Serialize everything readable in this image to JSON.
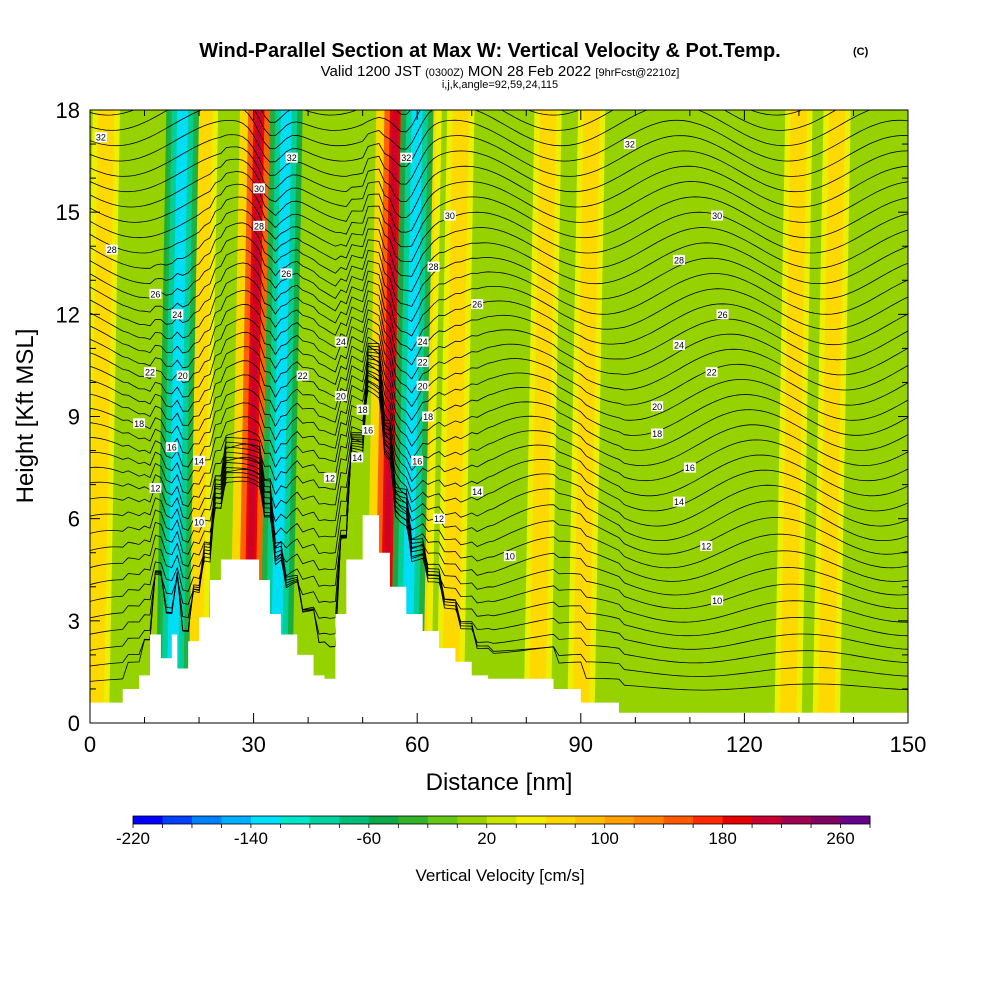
{
  "header": {
    "title": "Wind-Parallel Section at Max W: Vertical Velocity & Pot.Temp.",
    "copyright": "(C)",
    "valid_prefix": "Valid 1200 JST",
    "valid_zulu": "(0300Z)",
    "valid_date": "MON 28 Feb 2022",
    "forecast": "[9hrFcst@2210z]",
    "indices": "i,j,k,angle=92,59,24,115"
  },
  "chart_data": {
    "type": "heatmap",
    "xlabel": "Distance [nm]",
    "ylabel": "Height [Kft MSL]",
    "xlim": [
      0,
      150
    ],
    "ylim": [
      0,
      18
    ],
    "x_ticks": [
      "0",
      "30",
      "60",
      "90",
      "120",
      "150"
    ],
    "y_ticks": [
      "0",
      "3",
      "6",
      "9",
      "12",
      "15",
      "18"
    ],
    "colorbar": {
      "label": "Vertical Velocity [cm/s]",
      "min": -220,
      "max": 280,
      "step": 20,
      "tick_labels": [
        "-220",
        "-140",
        "-60",
        "20",
        "100",
        "180",
        "260"
      ],
      "colors": [
        "#0000ff",
        "#0040ff",
        "#0080ff",
        "#00b0ff",
        "#00e0ff",
        "#00e6c8",
        "#00d2a0",
        "#00be78",
        "#0aaa46",
        "#32b428",
        "#64c814",
        "#96d200",
        "#c8e600",
        "#f0f000",
        "#ffd700",
        "#ffbe00",
        "#ffa000",
        "#ff8200",
        "#ff5a00",
        "#ff2800",
        "#e60000",
        "#c80032",
        "#a00050",
        "#820064",
        "#64008c"
      ]
    },
    "updraft_bands_nm": [
      3,
      17,
      21,
      31,
      56,
      62,
      68,
      84,
      92,
      130,
      137
    ],
    "downdraft_bands_nm": [
      15,
      34,
      58
    ],
    "terrain": [
      {
        "x": 0,
        "h": 0.6
      },
      {
        "x": 3,
        "h": 0.6
      },
      {
        "x": 6,
        "h": 1.0
      },
      {
        "x": 9,
        "h": 1.4
      },
      {
        "x": 11,
        "h": 2.6
      },
      {
        "x": 13,
        "h": 1.9
      },
      {
        "x": 15,
        "h": 2.6
      },
      {
        "x": 16,
        "h": 1.6
      },
      {
        "x": 18,
        "h": 2.4
      },
      {
        "x": 20,
        "h": 3.1
      },
      {
        "x": 22,
        "h": 4.2
      },
      {
        "x": 24,
        "h": 4.8
      },
      {
        "x": 28,
        "h": 4.8
      },
      {
        "x": 31,
        "h": 4.2
      },
      {
        "x": 33,
        "h": 3.2
      },
      {
        "x": 35,
        "h": 2.6
      },
      {
        "x": 38,
        "h": 2.0
      },
      {
        "x": 41,
        "h": 1.4
      },
      {
        "x": 43,
        "h": 1.3
      },
      {
        "x": 45,
        "h": 3.2
      },
      {
        "x": 47,
        "h": 4.8
      },
      {
        "x": 50,
        "h": 6.1
      },
      {
        "x": 53,
        "h": 5.0
      },
      {
        "x": 55,
        "h": 4.0
      },
      {
        "x": 58,
        "h": 3.2
      },
      {
        "x": 61,
        "h": 2.7
      },
      {
        "x": 64,
        "h": 2.2
      },
      {
        "x": 67,
        "h": 1.8
      },
      {
        "x": 70,
        "h": 1.4
      },
      {
        "x": 73,
        "h": 1.3
      },
      {
        "x": 79,
        "h": 1.3
      },
      {
        "x": 82,
        "h": 1.3
      },
      {
        "x": 85,
        "h": 1.0
      },
      {
        "x": 90,
        "h": 0.6
      },
      {
        "x": 95,
        "h": 0.6
      },
      {
        "x": 97,
        "h": 0.3
      },
      {
        "x": 150,
        "h": 0.3
      }
    ],
    "isentrope_labels": [
      {
        "text": "32",
        "x": 2,
        "y": 17.2
      },
      {
        "text": "32",
        "x": 37,
        "y": 16.6
      },
      {
        "text": "32",
        "x": 58,
        "y": 16.6
      },
      {
        "text": "32",
        "x": 99,
        "y": 17.0
      },
      {
        "text": "30",
        "x": 31,
        "y": 15.7
      },
      {
        "text": "30",
        "x": 66,
        "y": 14.9
      },
      {
        "text": "30",
        "x": 115,
        "y": 14.9
      },
      {
        "text": "28",
        "x": 4,
        "y": 13.9
      },
      {
        "text": "28",
        "x": 31,
        "y": 14.6
      },
      {
        "text": "28",
        "x": 63,
        "y": 13.4
      },
      {
        "text": "28",
        "x": 108,
        "y": 13.6
      },
      {
        "text": "26",
        "x": 12,
        "y": 12.6
      },
      {
        "text": "26",
        "x": 36,
        "y": 13.2
      },
      {
        "text": "26",
        "x": 71,
        "y": 12.3
      },
      {
        "text": "26",
        "x": 116,
        "y": 12.0
      },
      {
        "text": "24",
        "x": 16,
        "y": 12.0
      },
      {
        "text": "24",
        "x": 46,
        "y": 11.2
      },
      {
        "text": "24",
        "x": 61,
        "y": 11.2
      },
      {
        "text": "24",
        "x": 108,
        "y": 11.1
      },
      {
        "text": "22",
        "x": 11,
        "y": 10.3
      },
      {
        "text": "22",
        "x": 39,
        "y": 10.2
      },
      {
        "text": "22",
        "x": 61,
        "y": 10.6
      },
      {
        "text": "22",
        "x": 114,
        "y": 10.3
      },
      {
        "text": "20",
        "x": 17,
        "y": 10.2
      },
      {
        "text": "20",
        "x": 46,
        "y": 9.6
      },
      {
        "text": "20",
        "x": 61,
        "y": 9.9
      },
      {
        "text": "20",
        "x": 104,
        "y": 9.3
      },
      {
        "text": "18",
        "x": 9,
        "y": 8.8
      },
      {
        "text": "18",
        "x": 50,
        "y": 9.2
      },
      {
        "text": "18",
        "x": 62,
        "y": 9.0
      },
      {
        "text": "18",
        "x": 104,
        "y": 8.5
      },
      {
        "text": "16",
        "x": 15,
        "y": 8.1
      },
      {
        "text": "16",
        "x": 51,
        "y": 8.6
      },
      {
        "text": "16",
        "x": 60,
        "y": 7.7
      },
      {
        "text": "16",
        "x": 110,
        "y": 7.5
      },
      {
        "text": "14",
        "x": 20,
        "y": 7.7
      },
      {
        "text": "14",
        "x": 49,
        "y": 7.8
      },
      {
        "text": "14",
        "x": 71,
        "y": 6.8
      },
      {
        "text": "14",
        "x": 108,
        "y": 6.5
      },
      {
        "text": "12",
        "x": 12,
        "y": 6.9
      },
      {
        "text": "12",
        "x": 44,
        "y": 7.2
      },
      {
        "text": "12",
        "x": 64,
        "y": 6.0
      },
      {
        "text": "12",
        "x": 113,
        "y": 5.2
      },
      {
        "text": "10",
        "x": 20,
        "y": 5.9
      },
      {
        "text": "10",
        "x": 77,
        "y": 4.9
      },
      {
        "text": "10",
        "x": 115,
        "y": 3.6
      }
    ]
  }
}
